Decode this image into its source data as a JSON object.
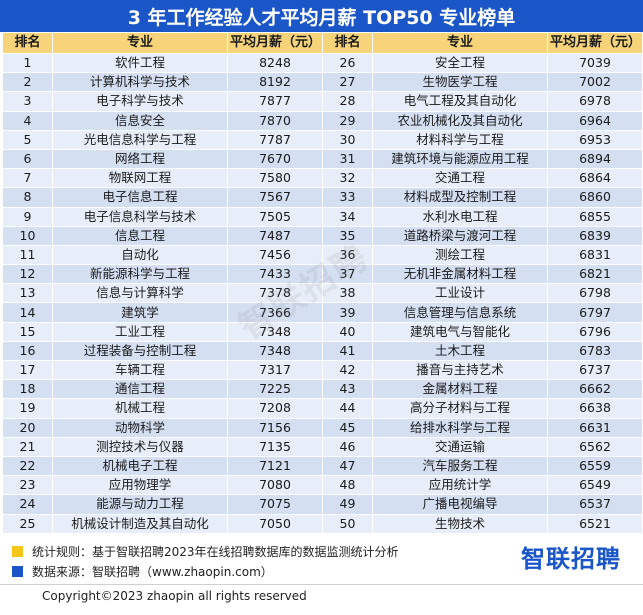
{
  "title": "3 年工作经验人才平均月薪 TOP50 专业榜单",
  "headers": {
    "rank": "排名",
    "major": "专业",
    "salary": "平均月薪（元）"
  },
  "left_rows": [
    {
      "rank": "1",
      "major": "软件工程",
      "salary": "8248"
    },
    {
      "rank": "2",
      "major": "计算机科学与技术",
      "salary": "8192"
    },
    {
      "rank": "3",
      "major": "电子科学与技术",
      "salary": "7877"
    },
    {
      "rank": "4",
      "major": "信息安全",
      "salary": "7870"
    },
    {
      "rank": "5",
      "major": "光电信息科学与工程",
      "salary": "7787"
    },
    {
      "rank": "6",
      "major": "网络工程",
      "salary": "7670"
    },
    {
      "rank": "7",
      "major": "物联网工程",
      "salary": "7580"
    },
    {
      "rank": "8",
      "major": "电子信息工程",
      "salary": "7567"
    },
    {
      "rank": "9",
      "major": "电子信息科学与技术",
      "salary": "7505"
    },
    {
      "rank": "10",
      "major": "信息工程",
      "salary": "7487"
    },
    {
      "rank": "11",
      "major": "自动化",
      "salary": "7456"
    },
    {
      "rank": "12",
      "major": "新能源科学与工程",
      "salary": "7433"
    },
    {
      "rank": "13",
      "major": "信息与计算科学",
      "salary": "7378"
    },
    {
      "rank": "14",
      "major": "建筑学",
      "salary": "7366"
    },
    {
      "rank": "15",
      "major": "工业工程",
      "salary": "7348"
    },
    {
      "rank": "16",
      "major": "过程装备与控制工程",
      "salary": "7348"
    },
    {
      "rank": "17",
      "major": "车辆工程",
      "salary": "7317"
    },
    {
      "rank": "18",
      "major": "通信工程",
      "salary": "7225"
    },
    {
      "rank": "19",
      "major": "机械工程",
      "salary": "7208"
    },
    {
      "rank": "20",
      "major": "动物科学",
      "salary": "7156"
    },
    {
      "rank": "21",
      "major": "测控技术与仪器",
      "salary": "7135"
    },
    {
      "rank": "22",
      "major": "机械电子工程",
      "salary": "7121"
    },
    {
      "rank": "23",
      "major": "应用物理学",
      "salary": "7080"
    },
    {
      "rank": "24",
      "major": "能源与动力工程",
      "salary": "7075"
    },
    {
      "rank": "25",
      "major": "机械设计制造及其自动化",
      "salary": "7050"
    }
  ],
  "right_rows": [
    {
      "rank": "26",
      "major": "安全工程",
      "salary": "7039"
    },
    {
      "rank": "27",
      "major": "生物医学工程",
      "salary": "7002"
    },
    {
      "rank": "28",
      "major": "电气工程及其自动化",
      "salary": "6978"
    },
    {
      "rank": "29",
      "major": "农业机械化及其自动化",
      "salary": "6964"
    },
    {
      "rank": "30",
      "major": "材料科学与工程",
      "salary": "6953"
    },
    {
      "rank": "31",
      "major": "建筑环境与能源应用工程",
      "salary": "6894"
    },
    {
      "rank": "32",
      "major": "交通工程",
      "salary": "6864"
    },
    {
      "rank": "33",
      "major": "材料成型及控制工程",
      "salary": "6860"
    },
    {
      "rank": "34",
      "major": "水利水电工程",
      "salary": "6855"
    },
    {
      "rank": "35",
      "major": "道路桥梁与渡河工程",
      "salary": "6839"
    },
    {
      "rank": "36",
      "major": "测绘工程",
      "salary": "6831"
    },
    {
      "rank": "37",
      "major": "无机非金属材料工程",
      "salary": "6821"
    },
    {
      "rank": "38",
      "major": "工业设计",
      "salary": "6798"
    },
    {
      "rank": "39",
      "major": "信息管理与信息系统",
      "salary": "6797"
    },
    {
      "rank": "40",
      "major": "建筑电气与智能化",
      "salary": "6796"
    },
    {
      "rank": "41",
      "major": "土木工程",
      "salary": "6783"
    },
    {
      "rank": "42",
      "major": "播音与主持艺术",
      "salary": "6737"
    },
    {
      "rank": "43",
      "major": "金属材料工程",
      "salary": "6662"
    },
    {
      "rank": "44",
      "major": "高分子材料与工程",
      "salary": "6638"
    },
    {
      "rank": "45",
      "major": "给排水科学与工程",
      "salary": "6631"
    },
    {
      "rank": "46",
      "major": "交通运输",
      "salary": "6562"
    },
    {
      "rank": "47",
      "major": "汽车服务工程",
      "salary": "6559"
    },
    {
      "rank": "48",
      "major": "应用统计学",
      "salary": "6549"
    },
    {
      "rank": "49",
      "major": "广播电视编导",
      "salary": "6537"
    },
    {
      "rank": "50",
      "major": "生物技术",
      "salary": "6521"
    }
  ],
  "watermark": "智联招聘",
  "notes": [
    {
      "text": "统计规则：基于智联招聘2023年在线招聘数据库的数据监测统计分析",
      "color": "#f5c518"
    },
    {
      "text": "数据来源：智联招聘（www.zhaopin.com）",
      "color": "#1a56c8"
    }
  ],
  "brand": "智联招聘",
  "copyright": "Copyright©2023 zhaopin all rights reserved",
  "colors": {
    "title_bg": "#1a56c8",
    "header_bg": "#f7d47a",
    "row_light": "#e8eef9",
    "row_dark": "#d4dff2"
  }
}
